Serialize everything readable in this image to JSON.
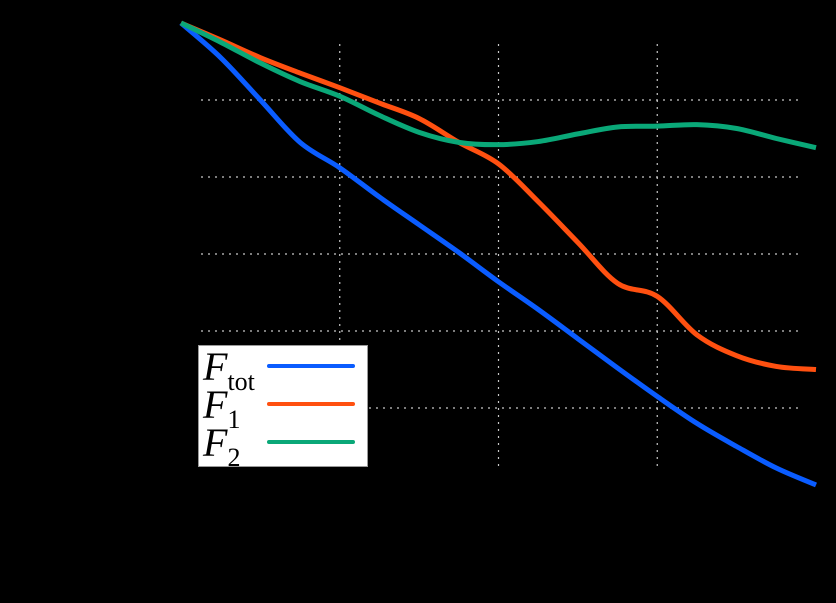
{
  "chart_data": {
    "type": "line",
    "title": "",
    "xlabel": "",
    "ylabel": "",
    "background": "#000000",
    "grid": {
      "on": true,
      "style": "dotted",
      "color": "#c8c8c8",
      "x_lines": [
        1,
        2,
        3
      ],
      "y_lines": [
        -1,
        -2,
        -3,
        -4,
        -5
      ]
    },
    "xlim": [
      0,
      4
    ],
    "ylim": [
      -6,
      0
    ],
    "x": [
      0,
      0.25,
      0.5,
      0.75,
      1.0,
      1.25,
      1.5,
      1.75,
      2.0,
      2.25,
      2.5,
      2.75,
      3.0,
      3.25,
      3.5,
      3.75,
      4.0
    ],
    "series": [
      {
        "name": "F_tot",
        "label_main": "F",
        "label_sub": "tot",
        "color": "#0a5cff",
        "values": [
          0,
          -0.45,
          -1.0,
          -1.55,
          -1.88,
          -2.26,
          -2.62,
          -2.98,
          -3.36,
          -3.72,
          -4.1,
          -4.48,
          -4.85,
          -5.2,
          -5.5,
          -5.78,
          -6.0
        ]
      },
      {
        "name": "F_1",
        "label_main": "F",
        "label_sub": "1",
        "color": "#ff5010",
        "values": [
          0,
          -0.22,
          -0.45,
          -0.65,
          -0.84,
          -1.04,
          -1.24,
          -1.55,
          -1.83,
          -2.32,
          -2.85,
          -3.38,
          -3.55,
          -4.05,
          -4.32,
          -4.46,
          -4.5
        ]
      },
      {
        "name": "F_2",
        "label_main": "F",
        "label_sub": "2",
        "color": "#0aa878",
        "values": [
          0,
          -0.25,
          -0.52,
          -0.76,
          -0.95,
          -1.2,
          -1.42,
          -1.55,
          -1.58,
          -1.54,
          -1.44,
          -1.35,
          -1.34,
          -1.32,
          -1.37,
          -1.5,
          -1.62
        ]
      }
    ],
    "legend": {
      "position": "lower left",
      "background": "#ffffff",
      "border": "#9a9a9a"
    }
  }
}
